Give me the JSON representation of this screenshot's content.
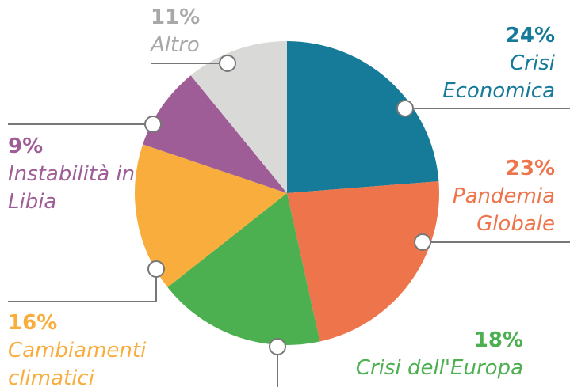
{
  "chart_data": {
    "type": "pie",
    "categories": [
      "Crisi Economica",
      "Pandemia Globale",
      "Crisi dell'Europa",
      "Cambiamenti climatici",
      "Instabilità in Libia",
      "Altro"
    ],
    "values": [
      24,
      23,
      18,
      16,
      9,
      11
    ],
    "value_labels": [
      "24%",
      "23%",
      "18%",
      "16%",
      "9%",
      "11%"
    ],
    "colors": [
      "#167a99",
      "#ee744b",
      "#4caf50",
      "#f8ad3d",
      "#9e5d96",
      "#d9d9d7"
    ]
  }
}
